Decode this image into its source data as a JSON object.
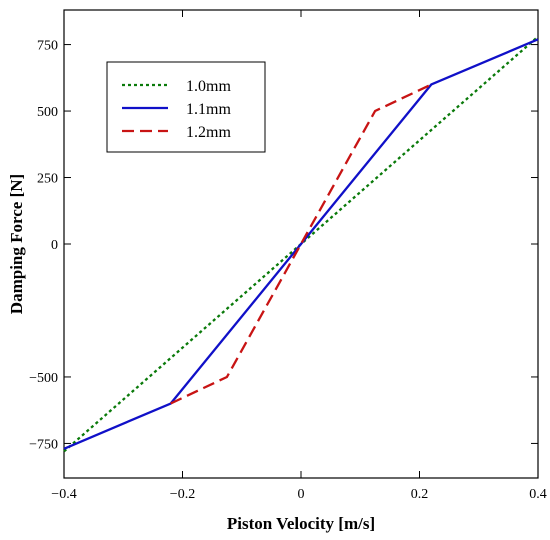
{
  "chart_data": {
    "type": "line",
    "title": "",
    "xlabel": "Piston Velocity [m/s]",
    "ylabel": "Damping Force [N]",
    "xlim": [
      -0.4,
      0.4
    ],
    "ylim": [
      -880,
      880
    ],
    "xticks": [
      -0.4,
      -0.2,
      0,
      0.2,
      0.4
    ],
    "xtick_labels": [
      "−0.4",
      "−0.2",
      "0",
      "0.2",
      "0.4"
    ],
    "yticks": [
      -750,
      -500,
      0,
      250,
      500,
      750
    ],
    "ytick_labels": [
      "−750",
      "−500",
      "0",
      "250",
      "500",
      "750"
    ],
    "grid": false,
    "legend_position": "top-left",
    "series": [
      {
        "name": "1.0mm",
        "color": "#0a7a0a",
        "dash": "dotted",
        "x": [
          -0.4,
          0.4
        ],
        "y": [
          -780,
          780
        ]
      },
      {
        "name": "1.1mm",
        "color": "#1010c8",
        "dash": "solid",
        "x": [
          -0.4,
          -0.22,
          0,
          0.22,
          0.4
        ],
        "y": [
          -770,
          -600,
          0,
          600,
          770
        ]
      },
      {
        "name": "1.2mm",
        "color": "#c81414",
        "dash": "dashed",
        "x": [
          -0.22,
          -0.125,
          0,
          0.125,
          0.22
        ],
        "y": [
          -600,
          -500,
          0,
          500,
          600
        ]
      }
    ]
  }
}
